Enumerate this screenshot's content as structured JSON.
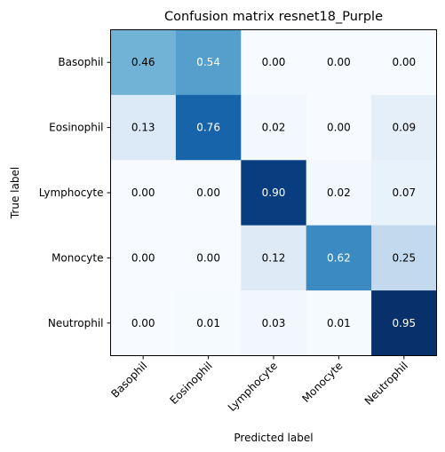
{
  "chart_data": {
    "type": "heatmap",
    "title": "Confusion matrix resnet18_Purple",
    "xlabel": "Predicted label",
    "ylabel": "True label",
    "x_categories": [
      "Basophil",
      "Eosinophil",
      "Lymphocyte",
      "Monocyte",
      "Neutrophil"
    ],
    "y_categories": [
      "Basophil",
      "Eosinophil",
      "Lymphocyte",
      "Monocyte",
      "Neutrophil"
    ],
    "values": [
      [
        0.46,
        0.54,
        0.0,
        0.0,
        0.0
      ],
      [
        0.13,
        0.76,
        0.02,
        0.0,
        0.09
      ],
      [
        0.0,
        0.0,
        0.9,
        0.02,
        0.07
      ],
      [
        0.0,
        0.0,
        0.12,
        0.62,
        0.25
      ],
      [
        0.0,
        0.01,
        0.03,
        0.01,
        0.95
      ]
    ],
    "colormap": "Blues",
    "value_range": [
      0,
      0.95
    ],
    "grid": false,
    "legend": "none"
  }
}
